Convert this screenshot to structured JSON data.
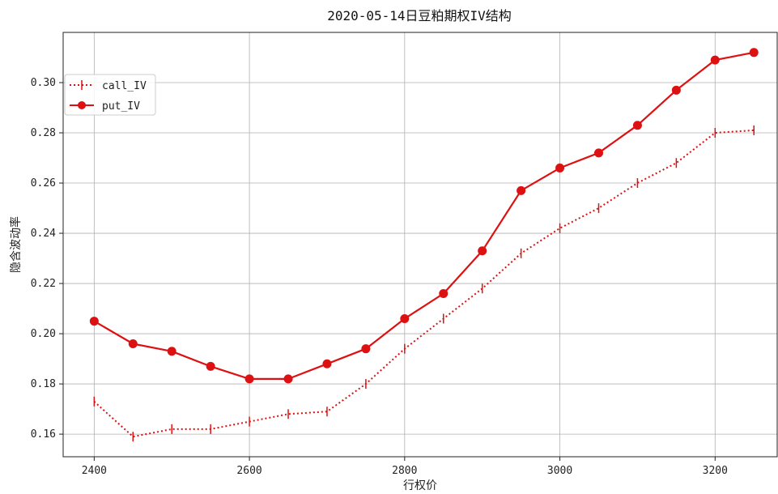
{
  "chart_data": {
    "type": "line",
    "title": "2020-05-14日豆粕期权IV结构",
    "xlabel": "行权价",
    "ylabel": "隐含波动率",
    "xlim": [
      2360,
      3280
    ],
    "ylim": [
      0.151,
      0.32
    ],
    "xticks": [
      2400,
      2600,
      2800,
      3000,
      3200
    ],
    "yticks": [
      0.16,
      0.18,
      0.2,
      0.22,
      0.24,
      0.26,
      0.28,
      0.3
    ],
    "grid": true,
    "legend_position": "upper-left",
    "x": [
      2400,
      2450,
      2500,
      2550,
      2600,
      2650,
      2700,
      2750,
      2800,
      2850,
      2900,
      2950,
      3000,
      3050,
      3100,
      3150,
      3200,
      3250
    ],
    "series": [
      {
        "name": "call_IV",
        "color": "#dd1111",
        "style": "dotted",
        "marker": "vline",
        "values": [
          0.173,
          0.159,
          0.162,
          0.162,
          0.165,
          0.168,
          0.169,
          0.18,
          0.194,
          0.206,
          0.218,
          0.232,
          0.242,
          0.25,
          0.26,
          0.268,
          0.28,
          0.281
        ]
      },
      {
        "name": "put_IV",
        "color": "#dd1111",
        "style": "solid",
        "marker": "circle",
        "values": [
          0.205,
          0.196,
          0.193,
          0.187,
          0.182,
          0.182,
          0.188,
          0.194,
          0.206,
          0.216,
          0.233,
          0.257,
          0.266,
          0.272,
          0.283,
          0.297,
          0.309,
          0.312
        ]
      }
    ]
  }
}
